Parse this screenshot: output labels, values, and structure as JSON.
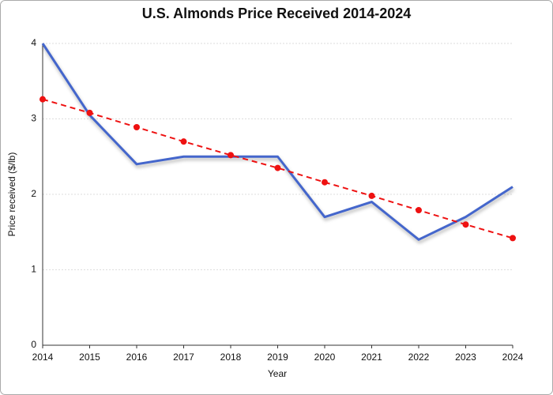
{
  "chart_data": {
    "type": "line",
    "title": "U.S. Almonds Price Received 2014-2024",
    "xlabel": "Year",
    "ylabel": "Price received ($/lb)",
    "x": [
      2014,
      2015,
      2016,
      2017,
      2018,
      2019,
      2020,
      2021,
      2022,
      2023,
      2024
    ],
    "series": [
      {
        "color": "#4466cc",
        "dashed": false,
        "markers": false,
        "values": [
          4.0,
          3.05,
          2.4,
          2.5,
          2.5,
          2.5,
          1.7,
          1.9,
          1.4,
          1.7,
          2.1
        ]
      },
      {
        "color": "#ee1111",
        "dashed": true,
        "markers": true,
        "values": [
          3.26,
          3.08,
          2.89,
          2.7,
          2.52,
          2.35,
          2.16,
          1.98,
          1.79,
          1.6,
          1.42
        ]
      }
    ],
    "xlim": [
      2014,
      2024
    ],
    "xticks": [
      2014,
      2015,
      2016,
      2017,
      2018,
      2019,
      2020,
      2021,
      2022,
      2023,
      2024
    ],
    "ylim": [
      0,
      4
    ],
    "yticks": [
      0,
      1,
      2,
      3,
      4
    ],
    "grid": true
  }
}
